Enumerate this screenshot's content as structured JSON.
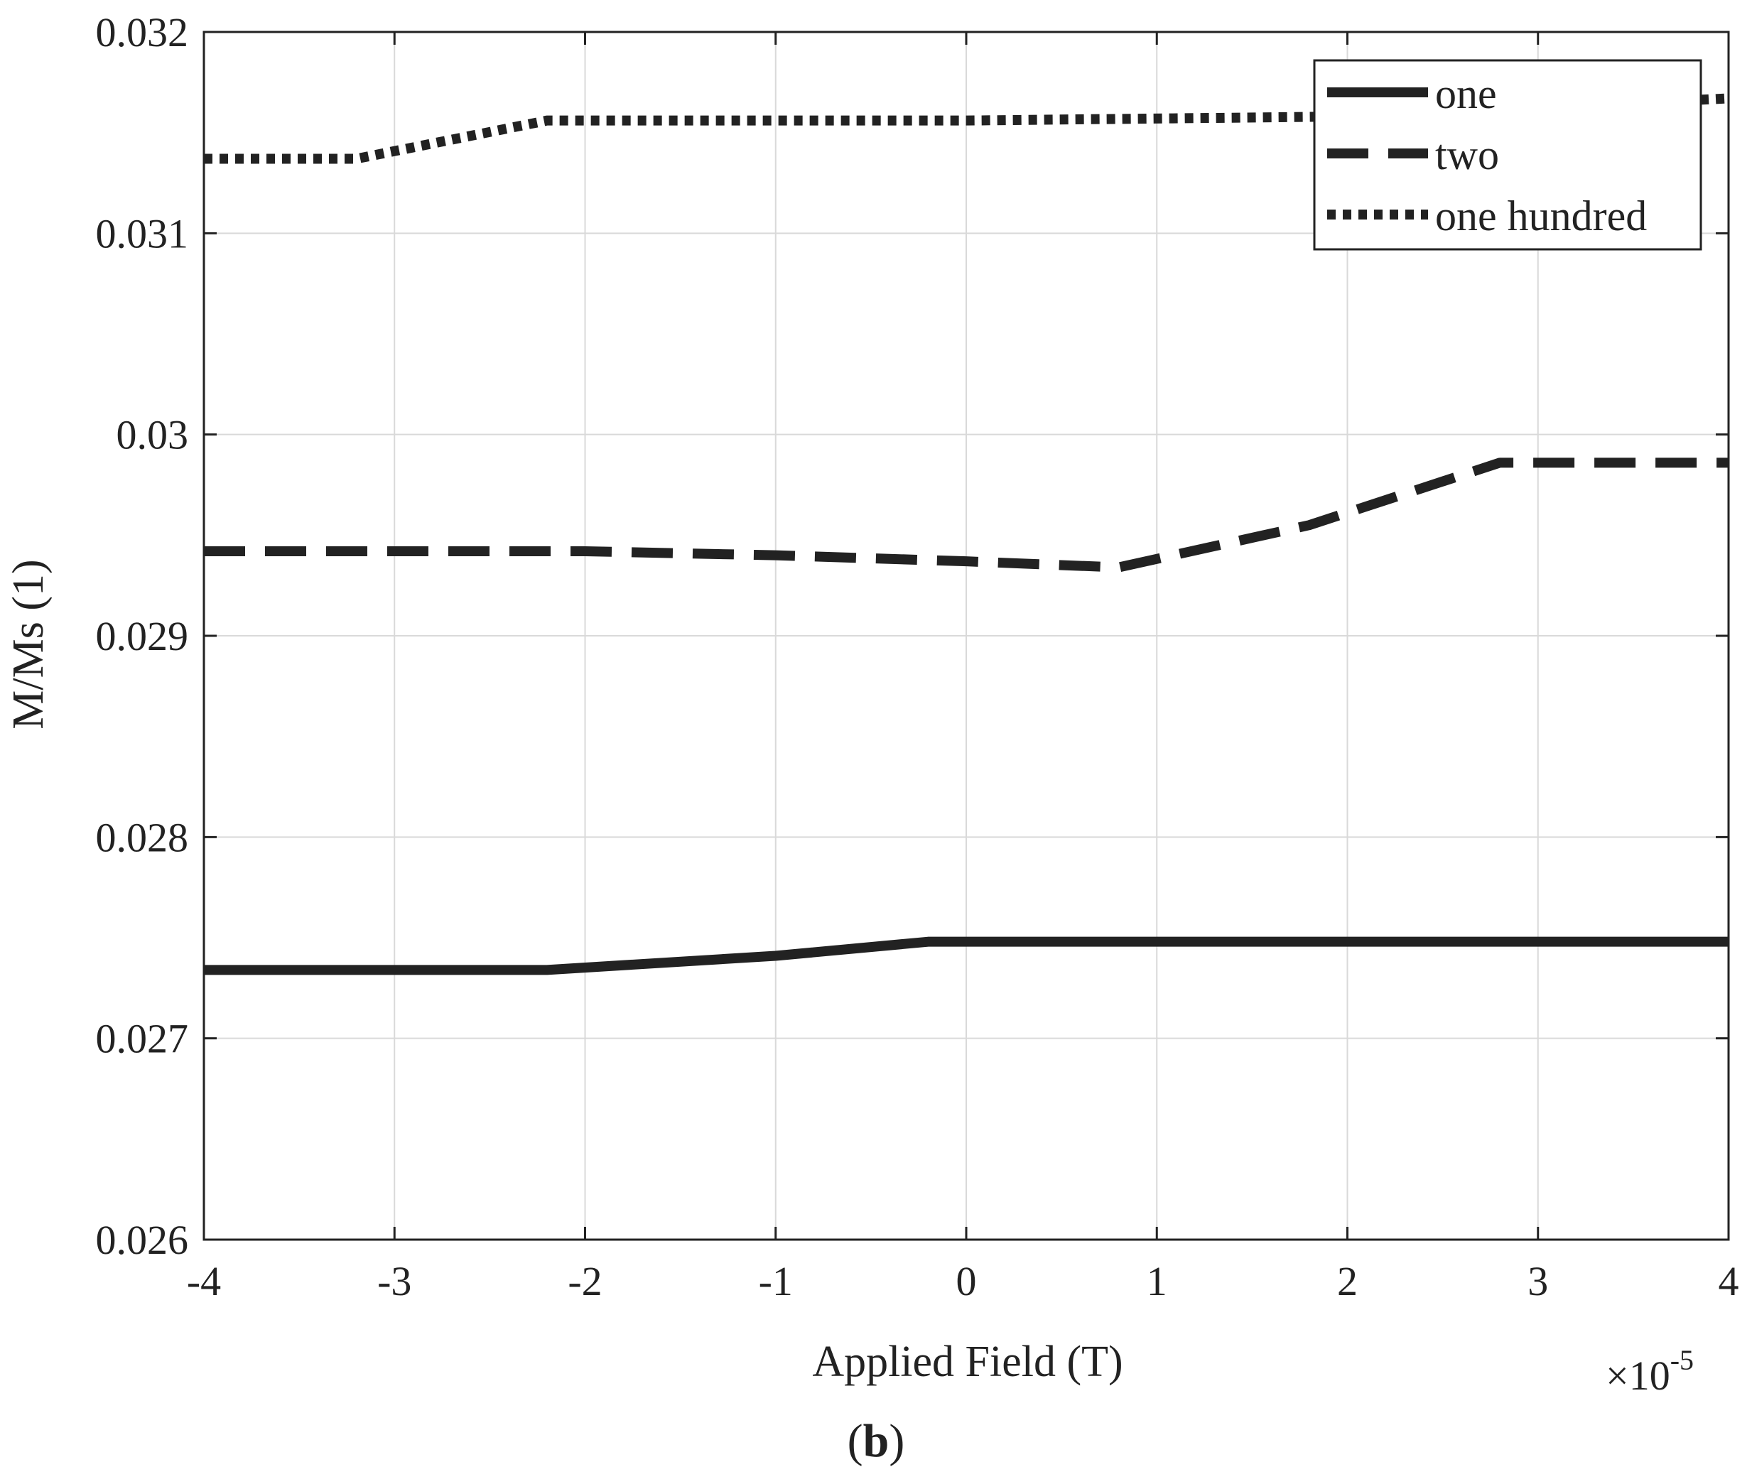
{
  "chart_data": {
    "type": "line",
    "xlabel": "Applied Field (T)",
    "ylabel": "M/Ms (1)",
    "x_multiplier_label": {
      "base": "×10",
      "exp": "-5"
    },
    "panel_label": {
      "open": "(",
      "letter": "b",
      "close": ")"
    },
    "xlim": [
      -4e-05,
      4e-05
    ],
    "ylim": [
      0.026,
      0.032
    ],
    "xticks": [
      -4e-05,
      -3e-05,
      -2e-05,
      -1e-05,
      0,
      1e-05,
      2e-05,
      3e-05,
      4e-05
    ],
    "xtick_labels": [
      "-4",
      "-3",
      "-2",
      "-1",
      "0",
      "1",
      "2",
      "3",
      "4"
    ],
    "yticks": [
      0.026,
      0.027,
      0.028,
      0.029,
      0.03,
      0.031,
      0.032
    ],
    "ytick_labels": [
      "0.026",
      "0.027",
      "0.028",
      "0.029",
      "0.03",
      "0.031",
      "0.032"
    ],
    "grid": true,
    "legend_position": "top-right",
    "series": [
      {
        "name": "one",
        "style": "solid",
        "x": [
          -4e-05,
          -2.2e-05,
          -1e-05,
          -2e-06,
          4e-05
        ],
        "y": [
          0.02734,
          0.02734,
          0.02741,
          0.02748,
          0.02748
        ]
      },
      {
        "name": "two",
        "style": "dashed",
        "x": [
          -4e-05,
          -2e-05,
          -1e-05,
          0,
          8e-06,
          1.8e-05,
          2.8e-05,
          4e-05
        ],
        "y": [
          0.02942,
          0.02942,
          0.0294,
          0.02937,
          0.02934,
          0.02955,
          0.02986,
          0.02986
        ]
      },
      {
        "name": "one hundred",
        "style": "dotted",
        "x": [
          -4e-05,
          -3.2e-05,
          -2.2e-05,
          0,
          2e-05,
          4e-05
        ],
        "y": [
          0.03137,
          0.03137,
          0.03156,
          0.03156,
          0.03158,
          0.03167
        ]
      }
    ],
    "colors": {
      "line": "#222222",
      "grid": "#d9d9d9",
      "axes": "#222222"
    }
  }
}
